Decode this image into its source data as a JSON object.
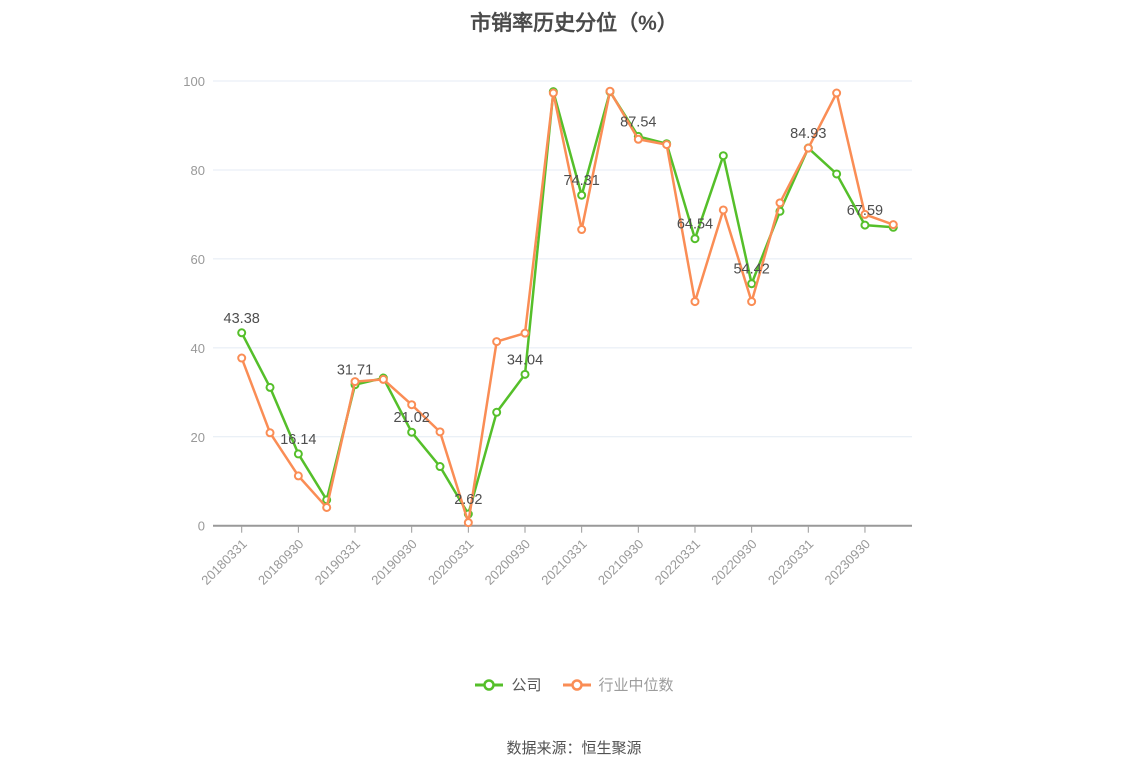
{
  "title": "市销率历史分位（%）",
  "source_text": "数据来源：恒生聚源",
  "legend": {
    "items": [
      {
        "label": "公司",
        "color": "#55bf2a"
      },
      {
        "label": "行业中位数",
        "color": "#fa8d55"
      }
    ]
  },
  "colors": {
    "company": "#55bf2a",
    "industry": "#fa8d55",
    "grid": "#e4ebf4",
    "axis": "#999999",
    "tick_text": "#999999",
    "data_label": "#4e4e4e"
  },
  "chart_data": {
    "type": "line",
    "title": "市销率历史分位（%）",
    "xlabel": "",
    "ylabel": "",
    "ylim": [
      0,
      100
    ],
    "y_ticks": [
      0,
      20,
      40,
      60,
      80,
      100
    ],
    "grid": true,
    "legend_position": "bottom",
    "x_tick_labels": [
      "20180331",
      "20180930",
      "20190331",
      "20190930",
      "20200331",
      "20200930",
      "20210331",
      "20210930",
      "20220331",
      "20220930",
      "20230331",
      "20230930"
    ],
    "x_note": "24 quarterly points; ticks/labels on every second point starting at index 0",
    "series": [
      {
        "name": "公司",
        "color": "#55bf2a",
        "values": [
          43.38,
          31.1,
          16.14,
          5.8,
          31.71,
          33.2,
          21.02,
          13.3,
          2.62,
          25.5,
          34.04,
          97.6,
          74.31,
          97.6,
          87.54,
          85.9,
          64.54,
          83.2,
          54.42,
          70.7,
          84.93,
          79.1,
          67.59,
          67.1
        ]
      },
      {
        "name": "行业中位数",
        "color": "#fa8d55",
        "values": [
          37.7,
          20.9,
          11.2,
          4.1,
          32.4,
          32.9,
          27.2,
          21.1,
          0.7,
          41.4,
          43.3,
          97.3,
          66.6,
          97.7,
          86.9,
          85.7,
          50.4,
          71.0,
          50.4,
          72.6,
          84.9,
          97.3,
          70.0,
          67.7
        ]
      }
    ],
    "data_labels_series0_at_even_indices": [
      "43.38",
      "16.14",
      "31.71",
      "21.02",
      "2.62",
      "34.04",
      "74.31",
      "87.54",
      "64.54",
      "54.42",
      "84.93",
      "67.59"
    ]
  }
}
